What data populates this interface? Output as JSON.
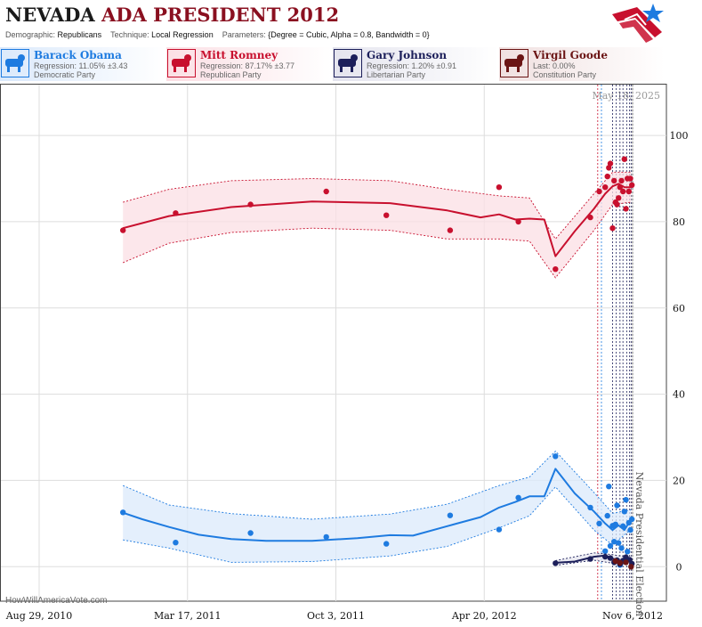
{
  "header": {
    "title_state": "NEVADA",
    "title_rest": "ADA PRESIDENT 2012",
    "demographic_label": "Demographic:",
    "demographic_value": "Republicans",
    "technique_label": "Technique:",
    "technique_value": "Local Regression",
    "parameters_label": "Parameters:",
    "parameters_value": "{Degree = Cubic, Alpha = 0.8, Bandwidth = 0}"
  },
  "candidates": [
    {
      "name": "Barack Obama",
      "stat": "Regression: 11.05% ±3.43",
      "party": "Democratic Party",
      "color": "#1e7be0",
      "bg": "#dbe9fb",
      "icon": "donkey-icon"
    },
    {
      "name": "Mitt Romney",
      "stat": "Regression: 87.17% ±3.77",
      "party": "Republican Party",
      "color": "#c8102e",
      "bg": "#fbdfe4",
      "icon": "elephant-icon"
    },
    {
      "name": "Gary Johnson",
      "stat": "Regression: 1.20% ±0.91",
      "party": "Libertarian Party",
      "color": "#1c1f5a",
      "bg": "#e4e4ee",
      "icon": "liberty-statue-icon"
    },
    {
      "name": "Virgil Goode",
      "stat": "Last: 0.00%",
      "party": "Constitution Party",
      "color": "#6b1515",
      "bg": "#f0e0e0",
      "icon": "eagle-icon"
    }
  ],
  "footer": {
    "credit": "HowWillAmericaVote.com"
  },
  "chart_data": {
    "type": "scatter",
    "date_label": "May 18, 2025",
    "x_ticks": [
      "Aug 29, 2010",
      "Mar 17, 2011",
      "Oct 3, 2011",
      "Apr 20, 2012",
      "Nov 6, 2012"
    ],
    "y_ticks": [
      0,
      20,
      40,
      60,
      80,
      100
    ],
    "ylim": [
      -8,
      112
    ],
    "xlim": [
      "2010-08-29",
      "2012-11-30"
    ],
    "event_label": "Nevada Presidential Election",
    "event_date": "2012-11-06",
    "poll_dates": [
      "2012-09-20",
      "2012-09-25",
      "2012-10-10",
      "2012-10-15",
      "2012-10-20",
      "2012-10-24",
      "2012-10-29",
      "2012-11-02",
      "2012-11-04"
    ],
    "series": [
      {
        "name": "Barack Obama",
        "color": "#1e7be0",
        "fill": "#dbe9fb",
        "points": [
          [
            "2010-12-20",
            12.6
          ],
          [
            "2011-03-01",
            5.6
          ],
          [
            "2011-06-10",
            7.8
          ],
          [
            "2011-09-20",
            6.9
          ],
          [
            "2011-12-10",
            5.3
          ],
          [
            "2012-03-05",
            11.9
          ],
          [
            "2012-05-10",
            8.6
          ],
          [
            "2012-06-05",
            16.0
          ],
          [
            "2012-07-25",
            25.6
          ],
          [
            "2012-09-10",
            13.7
          ],
          [
            "2012-09-22",
            10.0
          ],
          [
            "2012-09-30",
            3.6
          ],
          [
            "2012-10-03",
            11.8
          ],
          [
            "2012-10-05",
            18.6
          ],
          [
            "2012-10-07",
            4.8
          ],
          [
            "2012-10-10",
            9.5
          ],
          [
            "2012-10-12",
            5.8
          ],
          [
            "2012-10-14",
            9.8
          ],
          [
            "2012-10-16",
            14.2
          ],
          [
            "2012-10-18",
            5.5
          ],
          [
            "2012-10-20",
            0.4
          ],
          [
            "2012-10-22",
            4.3
          ],
          [
            "2012-10-24",
            9.4
          ],
          [
            "2012-10-26",
            12.8
          ],
          [
            "2012-10-28",
            15.5
          ],
          [
            "2012-10-30",
            3.5
          ],
          [
            "2012-11-01",
            10.2
          ],
          [
            "2012-11-03",
            8.5
          ],
          [
            "2012-11-05",
            11.0
          ]
        ],
        "trend": [
          [
            "2010-12-20",
            12.5
          ],
          [
            "2011-01-15",
            11.0
          ],
          [
            "2011-02-20",
            9.2
          ],
          [
            "2011-04-01",
            7.4
          ],
          [
            "2011-05-15",
            6.4
          ],
          [
            "2011-07-01",
            6.0
          ],
          [
            "2011-09-01",
            6.0
          ],
          [
            "2011-11-01",
            6.6
          ],
          [
            "2011-12-15",
            7.3
          ],
          [
            "2012-01-15",
            7.2
          ],
          [
            "2012-03-01",
            9.4
          ],
          [
            "2012-04-15",
            11.5
          ],
          [
            "2012-05-10",
            13.7
          ],
          [
            "2012-06-01",
            15.0
          ],
          [
            "2012-06-20",
            16.3
          ],
          [
            "2012-07-10",
            16.3
          ],
          [
            "2012-07-25",
            22.7
          ],
          [
            "2012-08-20",
            17.0
          ],
          [
            "2012-09-15",
            12.8
          ],
          [
            "2012-09-30",
            10.0
          ],
          [
            "2012-10-10",
            8.5
          ],
          [
            "2012-10-18",
            9.6
          ],
          [
            "2012-10-26",
            8.5
          ],
          [
            "2012-11-04",
            11.0
          ]
        ],
        "upper": [
          [
            "2010-12-20",
            18.8
          ],
          [
            "2011-02-20",
            14.3
          ],
          [
            "2011-05-15",
            12.3
          ],
          [
            "2011-09-01",
            11.0
          ],
          [
            "2011-12-15",
            12.2
          ],
          [
            "2012-03-01",
            14.5
          ],
          [
            "2012-05-10",
            18.8
          ],
          [
            "2012-06-20",
            20.8
          ],
          [
            "2012-07-25",
            26.8
          ],
          [
            "2012-09-15",
            17.2
          ],
          [
            "2012-10-10",
            12.4
          ],
          [
            "2012-11-04",
            13.2
          ]
        ],
        "lower": [
          [
            "2010-12-20",
            6.2
          ],
          [
            "2011-02-20",
            4.3
          ],
          [
            "2011-05-15",
            1.0
          ],
          [
            "2011-09-01",
            1.2
          ],
          [
            "2011-12-15",
            2.5
          ],
          [
            "2012-03-01",
            4.7
          ],
          [
            "2012-05-10",
            9.0
          ],
          [
            "2012-06-20",
            11.8
          ],
          [
            "2012-07-25",
            18.5
          ],
          [
            "2012-09-15",
            8.5
          ],
          [
            "2012-10-10",
            5.0
          ],
          [
            "2012-11-04",
            8.7
          ]
        ]
      },
      {
        "name": "Mitt Romney",
        "color": "#c8102e",
        "fill": "#fbdfe4",
        "points": [
          [
            "2010-12-20",
            78.0
          ],
          [
            "2011-03-01",
            82.0
          ],
          [
            "2011-06-10",
            84.0
          ],
          [
            "2011-09-20",
            87.0
          ],
          [
            "2011-12-10",
            81.5
          ],
          [
            "2012-03-05",
            78.0
          ],
          [
            "2012-05-10",
            88.0
          ],
          [
            "2012-06-05",
            80.0
          ],
          [
            "2012-07-25",
            69.0
          ],
          [
            "2012-09-10",
            81.0
          ],
          [
            "2012-09-22",
            87.0
          ],
          [
            "2012-09-30",
            88.0
          ],
          [
            "2012-10-03",
            90.5
          ],
          [
            "2012-10-05",
            92.5
          ],
          [
            "2012-10-07",
            93.5
          ],
          [
            "2012-10-10",
            78.5
          ],
          [
            "2012-10-12",
            89.5
          ],
          [
            "2012-10-14",
            84.5
          ],
          [
            "2012-10-16",
            84.0
          ],
          [
            "2012-10-18",
            85.5
          ],
          [
            "2012-10-20",
            88.0
          ],
          [
            "2012-10-22",
            89.5
          ],
          [
            "2012-10-24",
            87.0
          ],
          [
            "2012-10-26",
            94.5
          ],
          [
            "2012-10-28",
            83.0
          ],
          [
            "2012-10-30",
            90.0
          ],
          [
            "2012-11-01",
            87.0
          ],
          [
            "2012-11-03",
            90.0
          ],
          [
            "2012-11-05",
            88.5
          ]
        ],
        "trend": [
          [
            "2010-12-20",
            78.5
          ],
          [
            "2011-02-20",
            81.3
          ],
          [
            "2011-05-15",
            83.4
          ],
          [
            "2011-09-01",
            84.7
          ],
          [
            "2011-12-15",
            84.3
          ],
          [
            "2012-03-01",
            82.6
          ],
          [
            "2012-04-15",
            81.0
          ],
          [
            "2012-05-10",
            81.7
          ],
          [
            "2012-06-01",
            80.5
          ],
          [
            "2012-06-20",
            80.7
          ],
          [
            "2012-07-10",
            80.5
          ],
          [
            "2012-07-25",
            72.0
          ],
          [
            "2012-08-20",
            77.8
          ],
          [
            "2012-09-15",
            83.0
          ],
          [
            "2012-09-30",
            86.5
          ],
          [
            "2012-10-10",
            88.2
          ],
          [
            "2012-10-18",
            88.8
          ],
          [
            "2012-10-26",
            88.0
          ],
          [
            "2012-11-04",
            88.0
          ]
        ],
        "upper": [
          [
            "2010-12-20",
            84.5
          ],
          [
            "2011-02-20",
            87.5
          ],
          [
            "2011-05-15",
            89.5
          ],
          [
            "2011-09-01",
            90.0
          ],
          [
            "2011-12-15",
            89.5
          ],
          [
            "2012-03-01",
            87.5
          ],
          [
            "2012-05-10",
            86.0
          ],
          [
            "2012-06-20",
            85.5
          ],
          [
            "2012-07-25",
            76.0
          ],
          [
            "2012-09-15",
            86.5
          ],
          [
            "2012-10-10",
            91.5
          ],
          [
            "2012-11-04",
            91.5
          ]
        ],
        "lower": [
          [
            "2010-12-20",
            70.5
          ],
          [
            "2011-02-20",
            75.0
          ],
          [
            "2011-05-15",
            77.5
          ],
          [
            "2011-09-01",
            78.5
          ],
          [
            "2011-12-15",
            78.0
          ],
          [
            "2012-03-01",
            76.0
          ],
          [
            "2012-05-10",
            76.0
          ],
          [
            "2012-06-20",
            75.5
          ],
          [
            "2012-07-25",
            67.0
          ],
          [
            "2012-09-15",
            78.0
          ],
          [
            "2012-10-10",
            84.0
          ],
          [
            "2012-11-04",
            84.5
          ]
        ]
      },
      {
        "name": "Gary Johnson",
        "color": "#1c1f5a",
        "fill": "#e4e4ee",
        "points": [
          [
            "2012-07-25",
            0.8
          ],
          [
            "2012-09-10",
            1.8
          ],
          [
            "2012-09-30",
            2.3
          ],
          [
            "2012-10-07",
            2.0
          ],
          [
            "2012-10-12",
            1.0
          ],
          [
            "2012-10-16",
            1.5
          ],
          [
            "2012-10-20",
            0.6
          ],
          [
            "2012-10-24",
            1.4
          ],
          [
            "2012-10-28",
            2.2
          ],
          [
            "2012-11-02",
            1.6
          ],
          [
            "2012-11-05",
            0.7
          ]
        ],
        "trend": [
          [
            "2012-07-25",
            0.9
          ],
          [
            "2012-08-20",
            1.2
          ],
          [
            "2012-09-15",
            2.3
          ],
          [
            "2012-09-30",
            2.6
          ],
          [
            "2012-10-10",
            1.9
          ],
          [
            "2012-10-20",
            1.3
          ],
          [
            "2012-10-28",
            1.6
          ],
          [
            "2012-11-05",
            1.3
          ]
        ],
        "upper": [
          [
            "2012-07-25",
            1.4
          ],
          [
            "2012-09-15",
            3.2
          ],
          [
            "2012-10-10",
            2.8
          ],
          [
            "2012-11-05",
            2.0
          ]
        ],
        "lower": [
          [
            "2012-07-25",
            0.3
          ],
          [
            "2012-09-15",
            1.5
          ],
          [
            "2012-10-10",
            0.8
          ],
          [
            "2012-11-05",
            0.5
          ]
        ]
      },
      {
        "name": "Virgil Goode",
        "color": "#6b1515",
        "fill": "#f0e0e0",
        "points": [
          [
            "2012-10-14",
            1.3
          ],
          [
            "2012-10-20",
            0.9
          ],
          [
            "2012-10-28",
            1.0
          ],
          [
            "2012-11-04",
            0.0
          ]
        ],
        "trend": [],
        "upper": [],
        "lower": []
      }
    ]
  }
}
